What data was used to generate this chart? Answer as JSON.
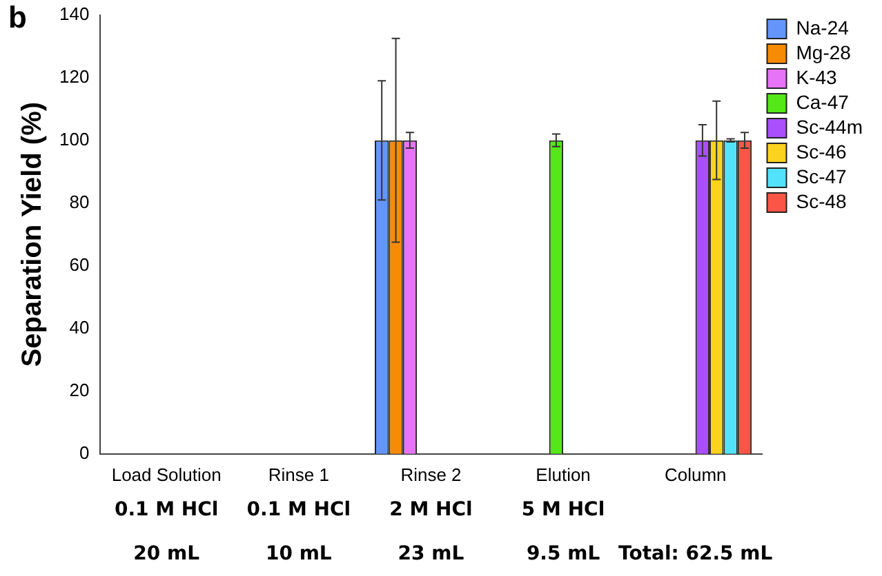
{
  "chart_data": {
    "type": "bar",
    "title": "b",
    "ylabel": "Separation Yield (%)",
    "categories": [
      "Load Solution",
      "Rinse 1",
      "Rinse 2",
      "Elution",
      "Column"
    ],
    "series": [
      {
        "name": "Na-24",
        "color": "#6495fb",
        "values": [
          null,
          null,
          100,
          null,
          null
        ],
        "errors": [
          null,
          null,
          19,
          null,
          null
        ]
      },
      {
        "name": "Mg-28",
        "color": "#f78b05",
        "values": [
          null,
          null,
          100,
          null,
          null
        ],
        "errors": [
          null,
          null,
          32.5,
          null,
          null
        ]
      },
      {
        "name": "K-43",
        "color": "#e774f8",
        "values": [
          null,
          null,
          100,
          null,
          null
        ],
        "errors": [
          null,
          null,
          2.5,
          null,
          null
        ]
      },
      {
        "name": "Ca-47",
        "color": "#54e818",
        "values": [
          null,
          null,
          null,
          100,
          null
        ],
        "errors": [
          null,
          null,
          null,
          2,
          null
        ]
      },
      {
        "name": "Sc-44m",
        "color": "#a94ffb",
        "values": [
          null,
          null,
          null,
          null,
          100
        ],
        "errors": [
          null,
          null,
          null,
          null,
          5
        ]
      },
      {
        "name": "Sc-46",
        "color": "#fbd21e",
        "values": [
          null,
          null,
          null,
          null,
          100
        ],
        "errors": [
          null,
          null,
          null,
          null,
          12.5
        ]
      },
      {
        "name": "Sc-47",
        "color": "#52e3fb",
        "values": [
          null,
          null,
          null,
          null,
          100
        ],
        "errors": [
          null,
          null,
          null,
          null,
          0.5
        ]
      },
      {
        "name": "Sc-48",
        "color": "#fb5548",
        "values": [
          null,
          null,
          null,
          null,
          100
        ],
        "errors": [
          null,
          null,
          null,
          null,
          2.5
        ]
      }
    ],
    "ylim": [
      0,
      140
    ],
    "yticks": [
      0,
      20,
      40,
      60,
      80,
      100,
      120,
      140
    ],
    "grid": false,
    "legend": "top right",
    "annotations": [
      "0.1 M HCl",
      "0.1 M HCl",
      "2 M HCl",
      "5 M HCl",
      "20 mL",
      "10 mL",
      "23 mL",
      "9.5 mL",
      "Total: 62.5 mL"
    ]
  }
}
